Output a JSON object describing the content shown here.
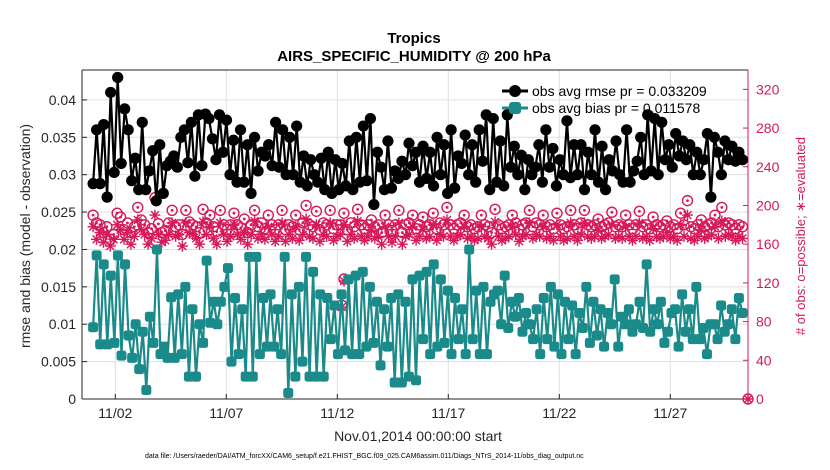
{
  "chart_data": {
    "type": "line",
    "title": "Tropics",
    "subtitle": "AIRS_SPECIFIC_HUMIDITY @ 200 hPa",
    "xlabel": "Nov.01,2014 00:00:00 start",
    "ylabel": "rmse and bias (model - observation)",
    "ylabel_right": "# of obs: o=possible; ∗=evaluated",
    "footnote": "data file: /Users/raeder/DAI/ATM_forcXX/CAM6_setup/f.e21.FHIST_BGC.f09_025.CAM6assim.011/Diags_NTrS_2014-11/obs_diag_output.nc",
    "xlim": [
      0.5,
      30.5
    ],
    "ylim": [
      0,
      0.044
    ],
    "ylim_right": [
      0,
      340
    ],
    "x_ticks": [
      {
        "value": 2,
        "label": "11/02"
      },
      {
        "value": 7,
        "label": "11/07"
      },
      {
        "value": 12,
        "label": "11/12"
      },
      {
        "value": 17,
        "label": "11/17"
      },
      {
        "value": 22,
        "label": "11/22"
      },
      {
        "value": 27,
        "label": "11/27"
      }
    ],
    "y_ticks": [
      {
        "value": 0,
        "label": "0"
      },
      {
        "value": 0.005,
        "label": "0.005"
      },
      {
        "value": 0.01,
        "label": "0.01"
      },
      {
        "value": 0.015,
        "label": "0.015"
      },
      {
        "value": 0.02,
        "label": "0.02"
      },
      {
        "value": 0.025,
        "label": "0.025"
      },
      {
        "value": 0.03,
        "label": "0.03"
      },
      {
        "value": 0.035,
        "label": "0.035"
      },
      {
        "value": 0.04,
        "label": "0.04"
      }
    ],
    "y_ticks_right": [
      {
        "value": 0,
        "label": "0"
      },
      {
        "value": 40,
        "label": "40"
      },
      {
        "value": 80,
        "label": "80"
      },
      {
        "value": 120,
        "label": "120"
      },
      {
        "value": 160,
        "label": "160"
      },
      {
        "value": 200,
        "label": "200"
      },
      {
        "value": 240,
        "label": "240"
      },
      {
        "value": 280,
        "label": "280"
      },
      {
        "value": 320,
        "label": "320"
      }
    ],
    "grid": true,
    "legend_position": "top-right",
    "series": [
      {
        "name": "obs avg rmse pr = 0.033209",
        "axis": "left",
        "color": "#000000",
        "values": [
          0.0288,
          0.036,
          0.0288,
          0.0367,
          0.027,
          0.041,
          0.0303,
          0.043,
          0.0315,
          0.0388,
          0.036,
          0.0292,
          0.0322,
          0.028,
          0.037,
          0.028,
          0.0305,
          0.0332,
          0.0265,
          0.034,
          0.0275,
          0.0312,
          0.0318,
          0.0325,
          0.031,
          0.035,
          0.036,
          0.0316,
          0.037,
          0.0298,
          0.038,
          0.0312,
          0.0381,
          0.0375,
          0.0348,
          0.032,
          0.038,
          0.033,
          0.0373,
          0.03,
          0.0346,
          0.029,
          0.036,
          0.029,
          0.034,
          0.0275,
          0.035,
          0.0305,
          0.033,
          0.0325,
          0.034,
          0.0312,
          0.037,
          0.031,
          0.036,
          0.03,
          0.035,
          0.03,
          0.0365,
          0.029,
          0.0325,
          0.0285,
          0.032,
          0.03,
          0.029,
          0.0322,
          0.028,
          0.033,
          0.0275,
          0.032,
          0.028,
          0.0315,
          0.0285,
          0.0345,
          0.028,
          0.035,
          0.029,
          0.0365,
          0.0292,
          0.0375,
          0.026,
          0.033,
          0.031,
          0.028,
          0.0345,
          0.0282,
          0.0305,
          0.0295,
          0.0318,
          0.03,
          0.0342,
          0.0312,
          0.033,
          0.029,
          0.0338,
          0.0295,
          0.033,
          0.0285,
          0.035,
          0.03,
          0.034,
          0.0275,
          0.036,
          0.0282,
          0.0325,
          0.0315,
          0.0353,
          0.03,
          0.034,
          0.029,
          0.036,
          0.0318,
          0.038,
          0.028,
          0.0375,
          0.029,
          0.0345,
          0.0285,
          0.038,
          0.031,
          0.0338,
          0.03,
          0.0326,
          0.028,
          0.032,
          0.03,
          0.031,
          0.034,
          0.029,
          0.036,
          0.031,
          0.0335,
          0.0285,
          0.032,
          0.03,
          0.0372,
          0.0296,
          0.034,
          0.03,
          0.034,
          0.028,
          0.033,
          0.03,
          0.036,
          0.029,
          0.0338,
          0.028,
          0.032,
          0.0305,
          0.0345,
          0.03,
          0.029,
          0.036,
          0.029,
          0.0305,
          0.0318,
          0.035,
          0.03,
          0.038,
          0.0305,
          0.0375,
          0.03,
          0.037,
          0.032,
          0.034,
          0.031,
          0.0355,
          0.0325,
          0.0345,
          0.032,
          0.034,
          0.03,
          0.033,
          0.03,
          0.032,
          0.0355,
          0.027,
          0.035,
          0.033,
          0.03,
          0.0345,
          0.032,
          0.0338,
          0.0318,
          0.033,
          0.032
        ]
      },
      {
        "name": "obs avg bias pr = 0.011578",
        "axis": "left",
        "color": "#1b8a8a",
        "values": [
          0.0096,
          0.0192,
          0.0073,
          0.018,
          0.0073,
          0.0165,
          0.0075,
          0.0192,
          0.0058,
          0.018,
          0.0085,
          0.0055,
          0.01,
          0.004,
          0.009,
          0.0012,
          0.011,
          0.0075,
          0.02,
          0.006,
          0.007,
          0.0055,
          0.0136,
          0.0055,
          0.014,
          0.006,
          0.015,
          0.003,
          0.012,
          0.003,
          0.01,
          0.0075,
          0.0185,
          0.0102,
          0.013,
          0.01,
          0.013,
          0.015,
          0.0175,
          0.005,
          0.0135,
          0.006,
          0.012,
          0.003,
          0.019,
          0.003,
          0.019,
          0.006,
          0.0135,
          0.007,
          0.014,
          0.007,
          0.012,
          0.006,
          0.019,
          0.0008,
          0.014,
          0.003,
          0.015,
          0.005,
          0.019,
          0.003,
          0.017,
          0.003,
          0.014,
          0.003,
          0.0135,
          0.008,
          0.0125,
          0.006,
          0.014,
          0.0065,
          0.016,
          0.006,
          0.0165,
          0.006,
          0.017,
          0.007,
          0.015,
          0.0075,
          0.013,
          0.0045,
          0.012,
          0.007,
          0.0135,
          0.0022,
          0.014,
          0.0022,
          0.013,
          0.003,
          0.016,
          0.0025,
          0.0165,
          0.008,
          0.017,
          0.006,
          0.018,
          0.007,
          0.016,
          0.0075,
          0.0145,
          0.006,
          0.0135,
          0.008,
          0.012,
          0.006,
          0.02,
          0.008,
          0.0145,
          0.006,
          0.015,
          0.006,
          0.013,
          0.014,
          0.0145,
          0.01,
          0.0165,
          0.0095,
          0.013,
          0.011,
          0.0135,
          0.009,
          0.0115,
          0.01,
          0.008,
          0.012,
          0.006,
          0.0135,
          0.008,
          0.015,
          0.007,
          0.014,
          0.006,
          0.013,
          0.008,
          0.0125,
          0.006,
          0.0115,
          0.0095,
          0.015,
          0.0075,
          0.013,
          0.0085,
          0.012,
          0.007,
          0.0115,
          0.01,
          0.016,
          0.007,
          0.011,
          0.01,
          0.012,
          0.009,
          0.01,
          0.013,
          0.0095,
          0.018,
          0.009,
          0.012,
          0.01,
          0.013,
          0.0075,
          0.009,
          0.0115,
          0.012,
          0.007,
          0.014,
          0.009,
          0.012,
          0.008,
          0.015,
          0.008,
          0.0095,
          0.006,
          0.01,
          0.01,
          0.008,
          0.0125,
          0.009,
          0.01,
          0.012,
          0.008,
          0.0135,
          0.0115
        ]
      },
      {
        "name": "possible",
        "axis": "right",
        "marker": "o",
        "color": "#d6195a",
        "values": [
          190,
          182,
          180,
          172,
          178,
          165,
          170,
          192,
          188,
          175,
          182,
          172,
          178,
          198,
          185,
          180,
          172,
          176,
          208,
          181,
          172,
          174,
          182,
          195,
          178,
          180,
          170,
          195,
          183,
          180,
          178,
          172,
          196,
          182,
          190,
          178,
          173,
          195,
          180,
          175,
          180,
          192,
          180,
          177,
          186,
          172,
          180,
          195,
          178,
          182,
          176,
          190,
          180,
          175,
          180,
          195,
          175,
          180,
          178,
          190,
          175,
          182,
          200,
          180,
          178,
          194,
          175,
          182,
          180,
          195,
          176,
          180,
          180,
          192,
          175,
          182,
          178,
          196,
          180,
          176,
          180,
          185,
          178,
          180,
          172,
          190,
          180,
          174,
          180,
          195,
          172,
          180,
          182,
          190,
          176,
          180,
          188,
          178,
          180,
          192,
          176,
          182,
          180,
          198,
          180,
          176,
          180,
          182,
          190,
          178,
          180,
          176,
          178,
          190,
          180,
          178,
          172,
          196,
          180,
          176,
          178,
          180,
          190,
          182,
          175,
          180,
          182,
          195,
          178,
          182,
          180,
          190,
          178,
          180,
          176,
          192,
          180,
          176,
          178,
          195,
          180,
          176,
          182,
          195,
          180,
          178,
          180,
          186,
          178,
          180,
          182,
          193,
          178,
          180,
          178,
          190,
          180,
          176,
          180,
          194,
          178,
          180,
          176,
          188,
          180,
          178,
          180,
          184,
          178,
          180,
          176,
          192,
          180,
          205,
          178,
          176,
          180,
          185,
          178,
          180,
          182,
          190,
          178,
          198,
          180,
          182,
          180,
          176,
          180,
          178
        ]
      },
      {
        "name": "evaluated",
        "axis": "right",
        "marker": "*",
        "color": "#d6195a",
        "values": [
          178,
          165,
          172,
          162,
          170,
          158,
          165,
          180,
          175,
          165,
          172,
          160,
          168,
          185,
          175,
          170,
          160,
          166,
          190,
          170,
          162,
          164,
          170,
          182,
          168,
          170,
          158,
          182,
          172,
          170,
          166,
          160,
          183,
          170,
          178,
          166,
          160,
          182,
          170,
          163,
          168,
          180,
          170,
          165,
          172,
          160,
          170,
          184,
          166,
          170,
          165,
          178,
          170,
          163,
          168,
          182,
          163,
          170,
          166,
          178,
          164,
          170,
          186,
          168,
          166,
          180,
          163,
          170,
          168,
          182,
          164,
          168,
          170,
          180,
          163,
          170,
          166,
          184,
          168,
          164,
          168,
          174,
          166,
          168,
          160,
          178,
          168,
          162,
          168,
          182,
          160,
          168,
          170,
          178,
          164,
          168,
          175,
          166,
          168,
          180,
          164,
          170,
          168,
          185,
          168,
          164,
          168,
          170,
          178,
          166,
          168,
          164,
          166,
          178,
          168,
          166,
          160,
          183,
          168,
          164,
          166,
          168,
          178,
          170,
          163,
          168,
          170,
          182,
          166,
          170,
          168,
          178,
          166,
          168,
          164,
          180,
          168,
          164,
          166,
          182,
          168,
          164,
          170,
          182,
          168,
          166,
          168,
          174,
          166,
          168,
          170,
          180,
          166,
          168,
          166,
          178,
          168,
          164,
          168,
          182,
          166,
          168,
          164,
          176,
          168,
          166,
          168,
          172,
          166,
          168,
          164,
          180,
          168,
          190,
          166,
          164,
          168,
          174,
          166,
          168,
          170,
          178,
          166,
          184,
          168,
          170,
          168,
          164,
          168,
          166
        ]
      }
    ],
    "annotations": [
      {
        "series": "possible",
        "x": 12.2,
        "y": 97,
        "marker": "o"
      },
      {
        "series": "possible",
        "x": 12.3,
        "y": 124,
        "marker": "o"
      },
      {
        "series": "evaluated",
        "x": 12.2,
        "y": 95,
        "marker": "*"
      },
      {
        "series": "evaluated",
        "x": 12.3,
        "y": 122,
        "marker": "*"
      },
      {
        "series": "possible",
        "x": 30.5,
        "y": 0,
        "marker": "o"
      },
      {
        "series": "evaluated",
        "x": 30.5,
        "y": 0,
        "marker": "*"
      }
    ]
  }
}
